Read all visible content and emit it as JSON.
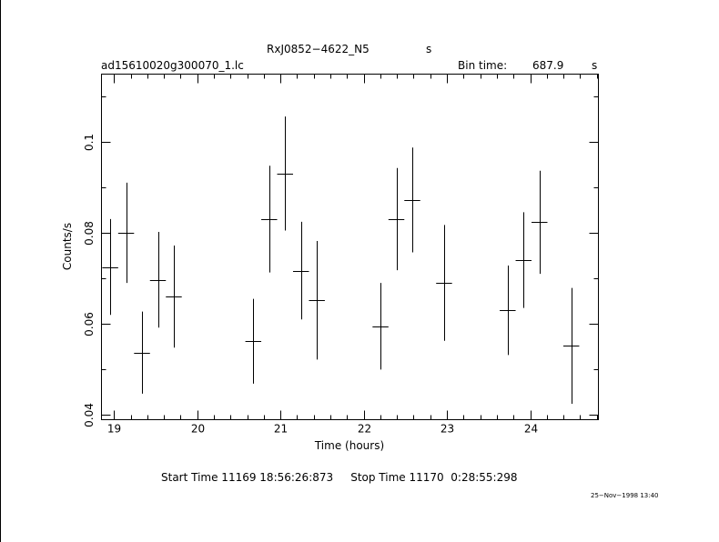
{
  "header": {
    "object_name": "RxJ0852−4622_N5",
    "object_unit": "s",
    "file_name": "ad15610020g300070_1.lc",
    "bin_label": "Bin time:",
    "bin_value": "687.9",
    "bin_unit": "s"
  },
  "footer": {
    "start_stop": "Start Time 11169 18:56:26:873     Stop Time 11170  0:28:55:298",
    "stamp": "25−Nov−1998 13:40"
  },
  "chart_data": {
    "type": "scatter",
    "title": "",
    "xlabel": "Time (hours)",
    "ylabel": "Counts/s",
    "xlim": [
      18.85,
      24.82
    ],
    "ylim": [
      0.039,
      0.1148
    ],
    "xticks": [
      19,
      20,
      21,
      22,
      23,
      24
    ],
    "xtick_labels": [
      "19",
      "20",
      "21",
      "22",
      "23",
      "24"
    ],
    "yticks": [
      0.04,
      0.06,
      0.08,
      0.1
    ],
    "ytick_labels": [
      "0.04",
      "0.06",
      "0.08",
      "0.1"
    ],
    "x_minor_step": 0.2,
    "y_minor_step": 0.01,
    "grid": false,
    "series": [
      {
        "x_halfwidth": 0.0955,
        "points": [
          {
            "x": 18.955,
            "y": 0.0725,
            "yerr": 0.0105
          },
          {
            "x": 19.146,
            "y": 0.08,
            "yerr": 0.011
          },
          {
            "x": 19.337,
            "y": 0.0537,
            "yerr": 0.009
          },
          {
            "x": 19.528,
            "y": 0.0697,
            "yerr": 0.0105
          },
          {
            "x": 19.719,
            "y": 0.066,
            "yerr": 0.0112
          },
          {
            "x": 20.674,
            "y": 0.0562,
            "yerr": 0.0093
          },
          {
            "x": 20.865,
            "y": 0.083,
            "yerr": 0.0117
          },
          {
            "x": 21.056,
            "y": 0.093,
            "yerr": 0.0125
          },
          {
            "x": 21.247,
            "y": 0.0717,
            "yerr": 0.0107
          },
          {
            "x": 21.438,
            "y": 0.0652,
            "yerr": 0.013
          },
          {
            "x": 22.202,
            "y": 0.0595,
            "yerr": 0.0095
          },
          {
            "x": 22.393,
            "y": 0.083,
            "yerr": 0.0112
          },
          {
            "x": 22.584,
            "y": 0.0872,
            "yerr": 0.0115
          },
          {
            "x": 22.966,
            "y": 0.069,
            "yerr": 0.0127
          },
          {
            "x": 23.73,
            "y": 0.063,
            "yerr": 0.0098
          },
          {
            "x": 23.921,
            "y": 0.074,
            "yerr": 0.0105
          },
          {
            "x": 24.112,
            "y": 0.0823,
            "yerr": 0.0113
          },
          {
            "x": 24.494,
            "y": 0.0552,
            "yerr": 0.0127
          }
        ]
      }
    ]
  }
}
